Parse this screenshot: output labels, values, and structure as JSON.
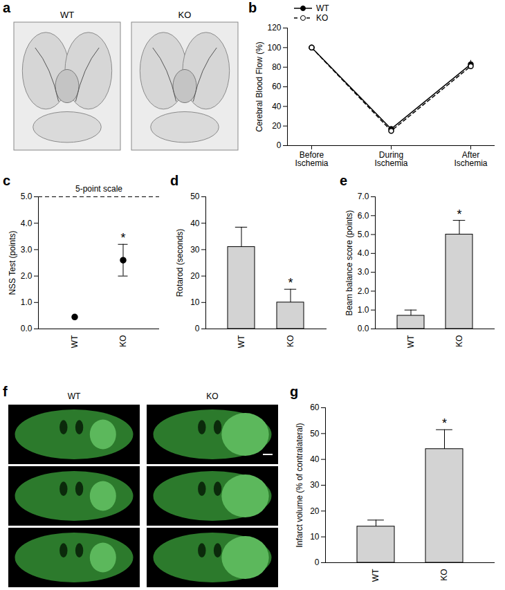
{
  "chart_data": [
    {
      "type": "image",
      "panel": "a",
      "labels": [
        "WT",
        "KO"
      ]
    },
    {
      "type": "line",
      "panel": "b",
      "ylabel": "Cerebral Blood Flow (%)",
      "categories": [
        "Before Ischemia",
        "During Ischemia",
        "After Ischemia"
      ],
      "series": [
        {
          "name": "WT",
          "color": "#000000",
          "marker": "circle",
          "line_style": "solid",
          "values": [
            100,
            17,
            83
          ],
          "errors": [
            null,
            null,
            4
          ]
        },
        {
          "name": "KO",
          "color": "#000000",
          "marker": "open circle",
          "line_style": "dashed",
          "values": [
            100,
            15,
            81
          ],
          "errors": [
            null,
            null,
            3
          ]
        }
      ],
      "ylim": [
        0,
        120
      ],
      "yticks": [
        0,
        20,
        40,
        60,
        80,
        100,
        120
      ],
      "legend": "top-left"
    },
    {
      "type": "scatter",
      "panel": "c",
      "ylabel": "NSS Test (points)",
      "categories": [
        "WT",
        "KO"
      ],
      "values": [
        0.45,
        2.6
      ],
      "errors": [
        null,
        0.6
      ],
      "color": "#000000",
      "reference_line": {
        "value": 5,
        "label": "5-point scale"
      },
      "annotations": [
        {
          "category": "KO",
          "text": "*"
        }
      ],
      "ylim": [
        0,
        5
      ],
      "yticks": [
        0,
        1,
        2,
        3,
        4,
        5
      ]
    },
    {
      "type": "bar",
      "panel": "d",
      "ylabel": "Rotarod (seconds)",
      "categories": [
        "WT",
        "KO"
      ],
      "values": [
        31,
        10
      ],
      "errors": [
        7.5,
        5
      ],
      "color": "#d3d3d3",
      "annotations": [
        {
          "category": "KO",
          "text": "*"
        }
      ],
      "ylim": [
        0,
        50
      ],
      "yticks": [
        0,
        10,
        20,
        30,
        40,
        50
      ]
    },
    {
      "type": "bar",
      "panel": "e",
      "ylabel": "Beam balance score (points)",
      "categories": [
        "WT",
        "KO"
      ],
      "values": [
        0.7,
        5.0
      ],
      "errors": [
        0.3,
        0.75
      ],
      "color": "#d3d3d3",
      "annotations": [
        {
          "category": "KO",
          "text": "*"
        }
      ],
      "ylim": [
        0,
        7
      ],
      "yticks": [
        0,
        1,
        2,
        3,
        4,
        5,
        6,
        7
      ]
    },
    {
      "type": "image",
      "panel": "f",
      "labels": [
        "WT",
        "KO"
      ]
    },
    {
      "type": "bar",
      "panel": "g",
      "ylabel": "Infarct volume (% of contralateral)",
      "categories": [
        "WT",
        "KO"
      ],
      "values": [
        14,
        44
      ],
      "errors": [
        2.5,
        7.5
      ],
      "color": "#d3d3d3",
      "annotations": [
        {
          "category": "KO",
          "text": "*"
        }
      ],
      "ylim": [
        0,
        60
      ],
      "yticks": [
        0,
        10,
        20,
        30,
        40,
        50,
        60
      ]
    }
  ]
}
